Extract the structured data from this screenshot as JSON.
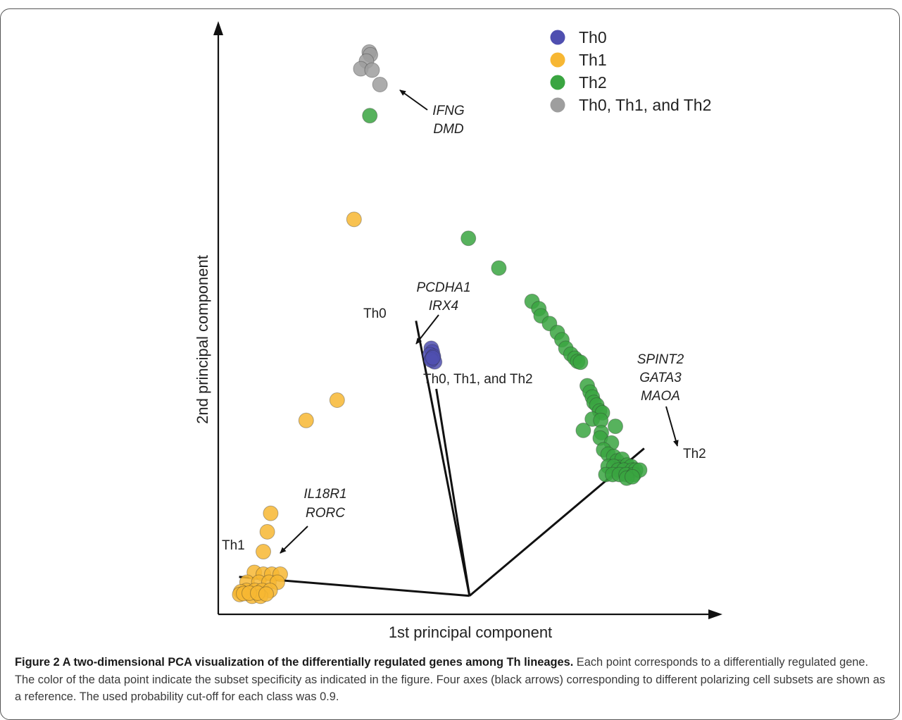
{
  "chart_data": {
    "type": "scatter",
    "xlabel": "1st principal component",
    "ylabel": "2nd principal component",
    "legend": {
      "placement": "top-right",
      "entries": [
        {
          "label": "Th0",
          "color": "#4f4fb0"
        },
        {
          "label": "Th1",
          "color": "#f7b733"
        },
        {
          "label": "Th2",
          "color": "#3aa541"
        },
        {
          "label": "Th0, Th1, and Th2",
          "color": "#9e9e9e"
        }
      ]
    },
    "series": [
      {
        "name": "Th0",
        "color": "#4f4fb0",
        "points": [
          [
            3.78,
            5.9
          ],
          [
            3.8,
            5.82
          ],
          [
            3.76,
            5.76
          ],
          [
            3.82,
            5.72
          ],
          [
            3.79,
            5.66
          ],
          [
            3.84,
            5.6
          ],
          [
            3.78,
            5.64
          ],
          [
            3.81,
            5.69
          ]
        ]
      },
      {
        "name": "Th1",
        "color": "#f7b733",
        "points": [
          [
            2.41,
            8.76
          ],
          [
            2.11,
            4.75
          ],
          [
            1.56,
            4.3
          ],
          [
            0.93,
            2.24
          ],
          [
            0.87,
            1.83
          ],
          [
            0.8,
            1.39
          ],
          [
            0.64,
            0.93
          ],
          [
            0.8,
            0.89
          ],
          [
            0.95,
            0.89
          ],
          [
            1.1,
            0.89
          ],
          [
            0.51,
            0.71
          ],
          [
            0.72,
            0.71
          ],
          [
            0.9,
            0.71
          ],
          [
            1.05,
            0.71
          ],
          [
            0.5,
            0.53
          ],
          [
            0.65,
            0.53
          ],
          [
            0.78,
            0.53
          ],
          [
            0.92,
            0.53
          ],
          [
            0.6,
            0.4
          ],
          [
            0.75,
            0.4
          ],
          [
            0.4,
            0.5
          ],
          [
            0.38,
            0.44
          ],
          [
            0.45,
            0.46
          ],
          [
            0.55,
            0.47
          ],
          [
            0.7,
            0.47
          ],
          [
            0.85,
            0.45
          ]
        ]
      },
      {
        "name": "Th2",
        "color": "#3aa541",
        "points": [
          [
            2.69,
            11.06
          ],
          [
            4.44,
            8.34
          ],
          [
            4.98,
            7.68
          ],
          [
            5.57,
            6.94
          ],
          [
            5.69,
            6.78
          ],
          [
            5.73,
            6.62
          ],
          [
            5.88,
            6.45
          ],
          [
            6.02,
            6.25
          ],
          [
            6.1,
            6.09
          ],
          [
            6.17,
            5.9
          ],
          [
            6.26,
            5.77
          ],
          [
            6.33,
            5.68
          ],
          [
            6.38,
            5.61
          ],
          [
            6.43,
            5.59
          ],
          [
            6.55,
            5.07
          ],
          [
            6.6,
            4.93
          ],
          [
            6.64,
            4.82
          ],
          [
            6.67,
            4.7
          ],
          [
            6.72,
            4.64
          ],
          [
            6.77,
            4.51
          ],
          [
            6.82,
            4.47
          ],
          [
            6.64,
            4.33
          ],
          [
            6.79,
            4.3
          ],
          [
            7.05,
            4.17
          ],
          [
            6.48,
            4.08
          ],
          [
            6.8,
            4.03
          ],
          [
            6.78,
            3.91
          ],
          [
            6.98,
            3.8
          ],
          [
            6.84,
            3.65
          ],
          [
            6.92,
            3.55
          ],
          [
            7.02,
            3.5
          ],
          [
            7.08,
            3.4
          ],
          [
            7.17,
            3.44
          ],
          [
            7.12,
            3.26
          ],
          [
            7.26,
            3.31
          ],
          [
            7.33,
            3.28
          ],
          [
            6.92,
            3.28
          ],
          [
            7.02,
            3.28
          ],
          [
            7.1,
            3.2
          ],
          [
            7.2,
            3.2
          ],
          [
            7.35,
            3.2
          ],
          [
            7.41,
            3.2
          ],
          [
            6.88,
            3.1
          ],
          [
            7.0,
            3.1
          ],
          [
            7.12,
            3.1
          ],
          [
            7.24,
            3.1
          ],
          [
            7.38,
            3.1
          ],
          [
            7.48,
            3.2
          ],
          [
            7.25,
            3.02
          ],
          [
            7.35,
            3.05
          ]
        ]
      },
      {
        "name": "Th0, Th1, and Th2",
        "color": "#9e9e9e",
        "points": [
          [
            2.68,
            12.47
          ],
          [
            2.7,
            12.41
          ],
          [
            2.63,
            12.27
          ],
          [
            2.53,
            12.1
          ],
          [
            2.73,
            12.07
          ],
          [
            2.87,
            11.75
          ]
        ]
      }
    ],
    "reference_axes": [
      {
        "label": "Th0",
        "from": [
          4.46,
          0.41
        ],
        "to": [
          3.51,
          6.51
        ]
      },
      {
        "label": "Th1",
        "from": [
          4.46,
          0.41
        ],
        "to": [
          0.37,
          0.83
        ]
      },
      {
        "label": "Th2",
        "from": [
          4.46,
          0.41
        ],
        "to": [
          7.56,
          3.68
        ]
      },
      {
        "label": "Th0, Th1, and Th2",
        "from": [
          4.46,
          0.41
        ],
        "to": [
          3.87,
          5.0
        ]
      }
    ],
    "annotations": [
      {
        "lines": [
          "IFNG",
          "DMD"
        ],
        "points_to": "Th0, Th1, and Th2"
      },
      {
        "lines": [
          "PCDHA1",
          "IRX4"
        ],
        "points_to": "Th0"
      },
      {
        "lines": [
          "SPINT2",
          "GATA3",
          "MAOA"
        ],
        "points_to": "Th2"
      },
      {
        "lines": [
          "IL18R1",
          "RORC"
        ],
        "points_to": "Th1"
      }
    ],
    "axis_label_th0": "Th0",
    "axis_label_th1": "Th1",
    "axis_label_th2": "Th2",
    "axis_label_all": "Th0, Th1, and Th2",
    "grid": false
  },
  "caption": {
    "title": "Figure 2 A two-dimensional PCA visualization of the differentially regulated genes among Th lineages.",
    "text": " Each point corresponds to a differentially regulated gene. The color of the data point indicate the subset specificity as indicated in the figure. Four axes (black arrows) corresponding to different polarizing cell subsets are shown as a reference. The used probability cut-off for each class was 0.9."
  }
}
